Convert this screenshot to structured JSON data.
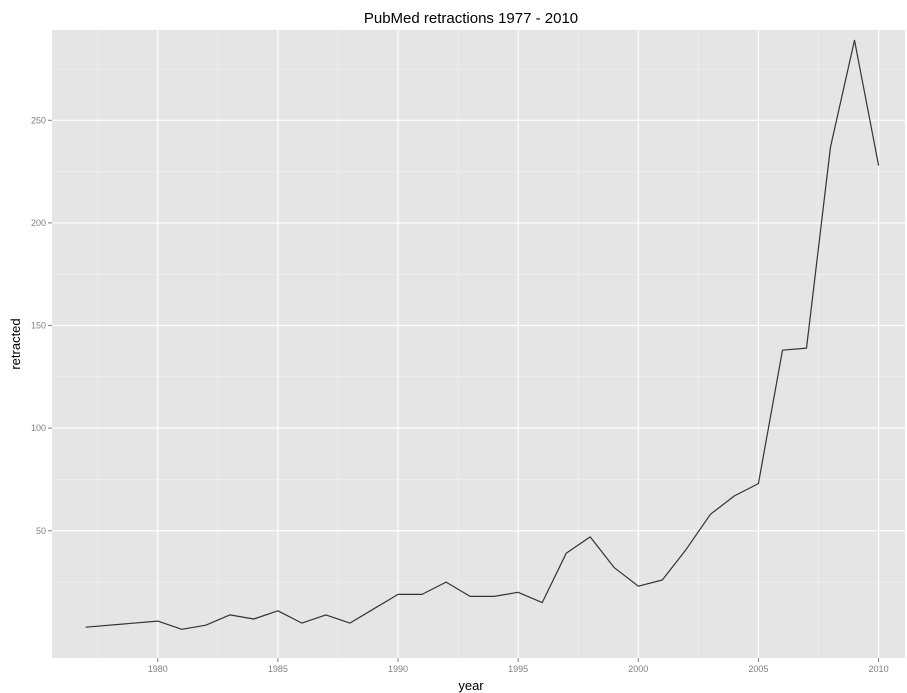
{
  "chart_data": {
    "type": "line",
    "title": "PubMed retractions 1977 - 2010",
    "xlabel": "year",
    "ylabel": "retracted",
    "xlim": [
      1975.6,
      2011.1
    ],
    "ylim": [
      -12,
      294
    ],
    "x_ticks": [
      1980,
      1985,
      1990,
      1995,
      2000,
      2005,
      2010
    ],
    "y_ticks": [
      50,
      100,
      150,
      200,
      250
    ],
    "grid": true,
    "legend": "none",
    "colors": {
      "panel": "#e5e5e5",
      "grid_major": "#ffffff",
      "grid_minor": "#f2f2f2",
      "line": "#333333"
    },
    "series": [
      {
        "x": [
          1977,
          1980,
          1981,
          1982,
          1983,
          1984,
          1985,
          1986,
          1987,
          1988,
          1989,
          1990,
          1991,
          1992,
          1993,
          1994,
          1995,
          1996,
          1997,
          1998,
          1999,
          2000,
          2001,
          2002,
          2003,
          2004,
          2005,
          2006,
          2007,
          2008,
          2009,
          2010
        ],
        "y": [
          3,
          6,
          2,
          4,
          9,
          7,
          11,
          5,
          9,
          5,
          12,
          19,
          19,
          25,
          18,
          18,
          20,
          15,
          39,
          47,
          32,
          23,
          26,
          41,
          58,
          67,
          73,
          138,
          139,
          237,
          289,
          228
        ]
      }
    ]
  }
}
